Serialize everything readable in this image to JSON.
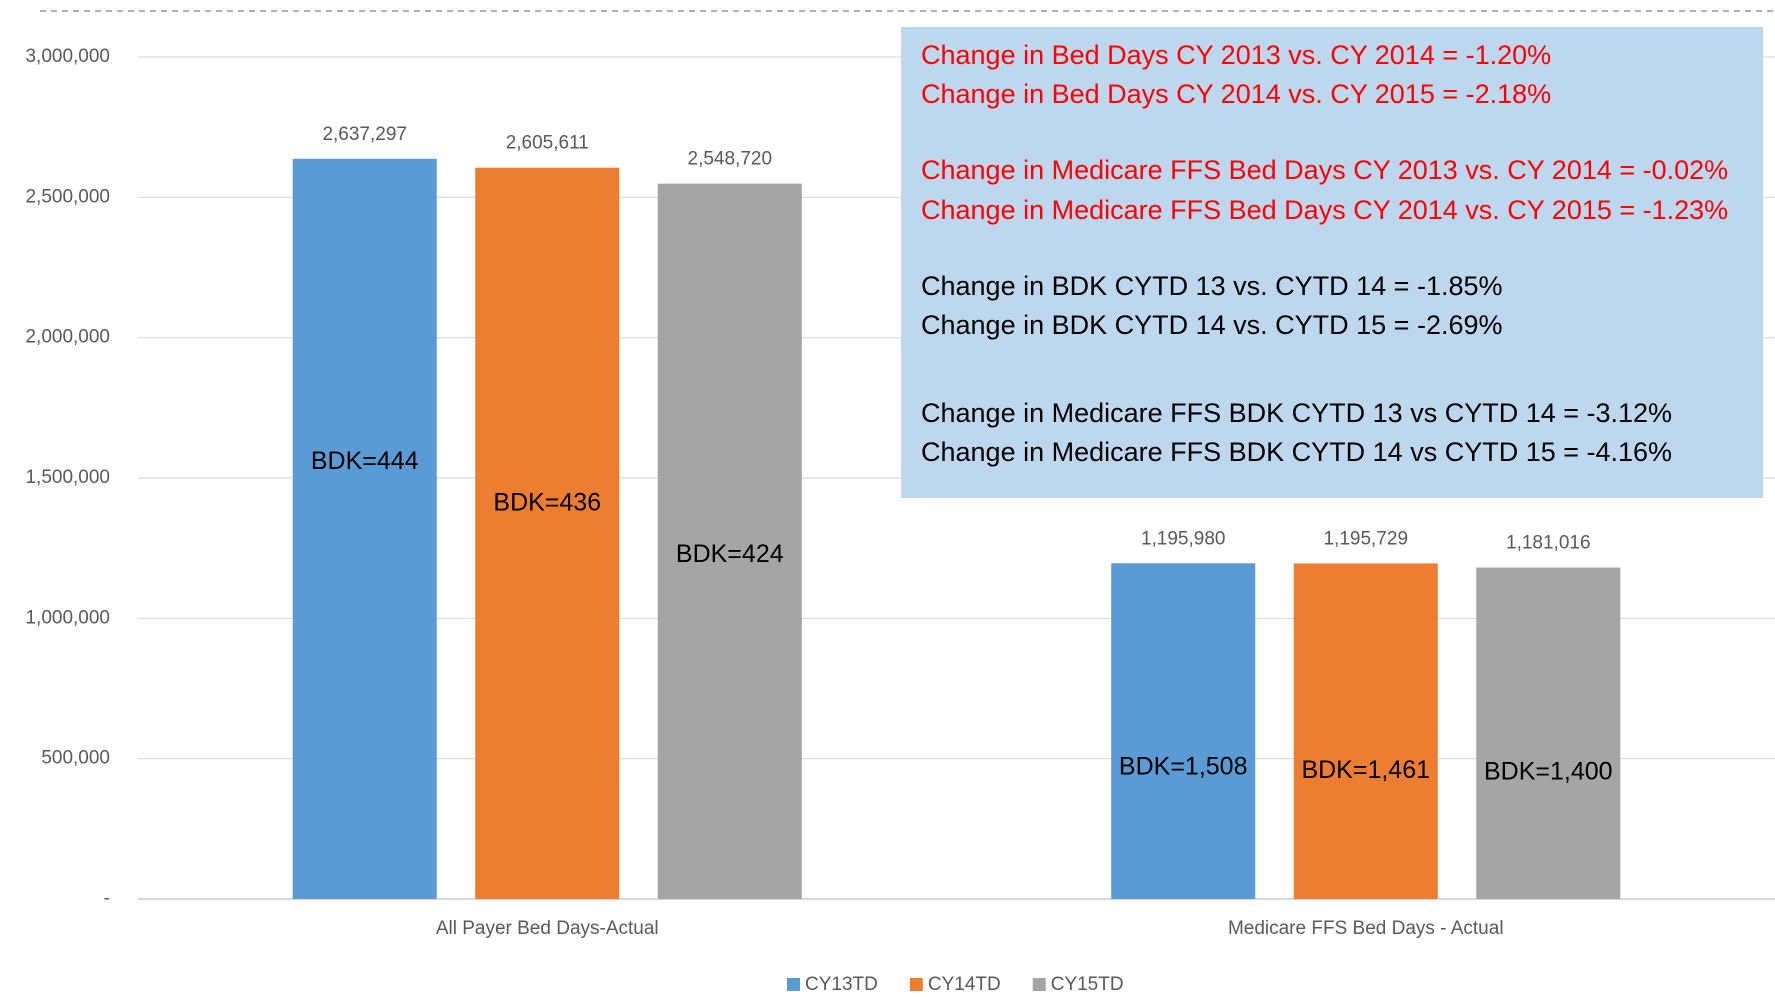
{
  "chart_data": {
    "type": "bar",
    "categories": [
      "All Payer Bed Days-Actual",
      "Medicare FFS Bed Days - Actual"
    ],
    "series": [
      {
        "name": "CY13TD",
        "color": "#5b9bd5",
        "values": [
          2637297,
          1195980
        ],
        "value_labels": [
          "2,637,297",
          "1,195,980"
        ],
        "annotations": [
          "BDK=444",
          "BDK=1,508"
        ]
      },
      {
        "name": "CY14TD",
        "color": "#ed7d31",
        "values": [
          2605611,
          1195729
        ],
        "value_labels": [
          "2,605,611",
          "1,195,729"
        ],
        "annotations": [
          "BDK=436",
          "BDK=1,461"
        ]
      },
      {
        "name": "CY15TD",
        "color": "#a5a5a5",
        "values": [
          2548720,
          1181016
        ],
        "value_labels": [
          "2,548,720",
          "1,181,016"
        ],
        "annotations": [
          "BDK=424",
          "BDK=1,400"
        ]
      }
    ],
    "ylim": [
      0,
      3000000
    ],
    "yticks": [
      {
        "value": 0,
        "label": "-"
      },
      {
        "value": 500000,
        "label": "500,000"
      },
      {
        "value": 1000000,
        "label": "1,000,000"
      },
      {
        "value": 1500000,
        "label": "1,500,000"
      },
      {
        "value": 2000000,
        "label": "2,000,000"
      },
      {
        "value": 2500000,
        "label": "2,500,000"
      },
      {
        "value": 3000000,
        "label": "3,000,000"
      }
    ],
    "grid": true,
    "legend": "bottom",
    "notes": [
      {
        "text": "Change in Bed Days CY 2013 vs. CY 2014 = -1.20%",
        "color": "#ff0000"
      },
      {
        "text": "Change in Bed Days CY 2014 vs. CY 2015 = -2.18%",
        "color": "#ff0000"
      },
      {
        "text": "Change in Medicare FFS Bed Days CY 2013 vs. CY 2014 = -0.02%",
        "color": "#ff0000"
      },
      {
        "text": "Change in Medicare FFS Bed Days CY 2014 vs. CY 2015 = -1.23%",
        "color": "#ff0000"
      },
      {
        "text": "Change in BDK CYTD 13 vs. CYTD 14 = -1.85%",
        "color": "#000000"
      },
      {
        "text": "Change in BDK CYTD 14 vs. CYTD 15 = -2.69%",
        "color": "#000000"
      },
      {
        "text": "Change in Medicare FFS BDK CYTD 13 vs CYTD 14 = -3.12%",
        "color": "#000000"
      },
      {
        "text": "Change in Medicare FFS BDK CYTD 14 vs CYTD 15 = -4.16%",
        "color": "#000000"
      }
    ]
  }
}
